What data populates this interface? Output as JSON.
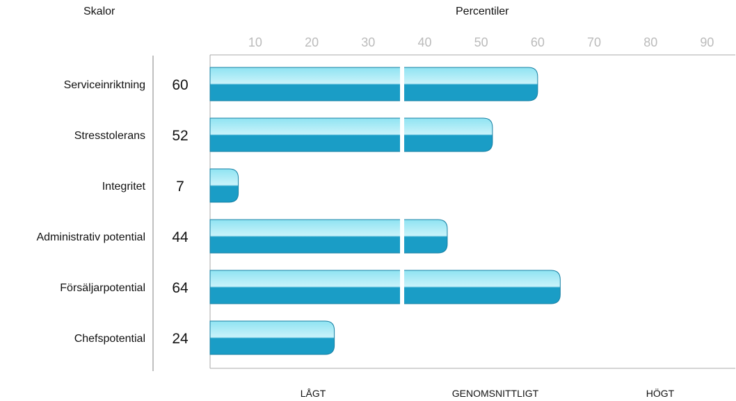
{
  "headers": {
    "scales": "Skalor",
    "percentiles": "Percentiler"
  },
  "bands": {
    "low": "LÅGT",
    "average": "GENOMSNITTLIGT",
    "high": "HÖGT"
  },
  "colors": {
    "bar_top": "#8fe3f2",
    "bar_bottom": "#1a9dc6",
    "bar_stroke": "#157fa3",
    "tick_label": "#bbbbbb",
    "axis": "#aaaaaa",
    "divider": "#ffffff"
  },
  "chart_data": {
    "type": "bar",
    "orientation": "horizontal",
    "categories": [
      "Serviceinriktning",
      "Stresstolerans",
      "Integritet",
      "Administrativ potential",
      "Försäljarpotential",
      "Chefspotential"
    ],
    "values": [
      60,
      52,
      7,
      44,
      64,
      24
    ],
    "value_labels": [
      "60",
      "52",
      "7",
      "44",
      "64",
      "24"
    ],
    "x_ticks": [
      "10",
      "20",
      "30",
      "40",
      "50",
      "60",
      "70",
      "80",
      "90"
    ],
    "xlim": [
      2,
      95
    ],
    "band_divider_at": 36,
    "title": "",
    "xlabel": "Percentiler",
    "ylabel": "Skalor",
    "grid": false
  }
}
